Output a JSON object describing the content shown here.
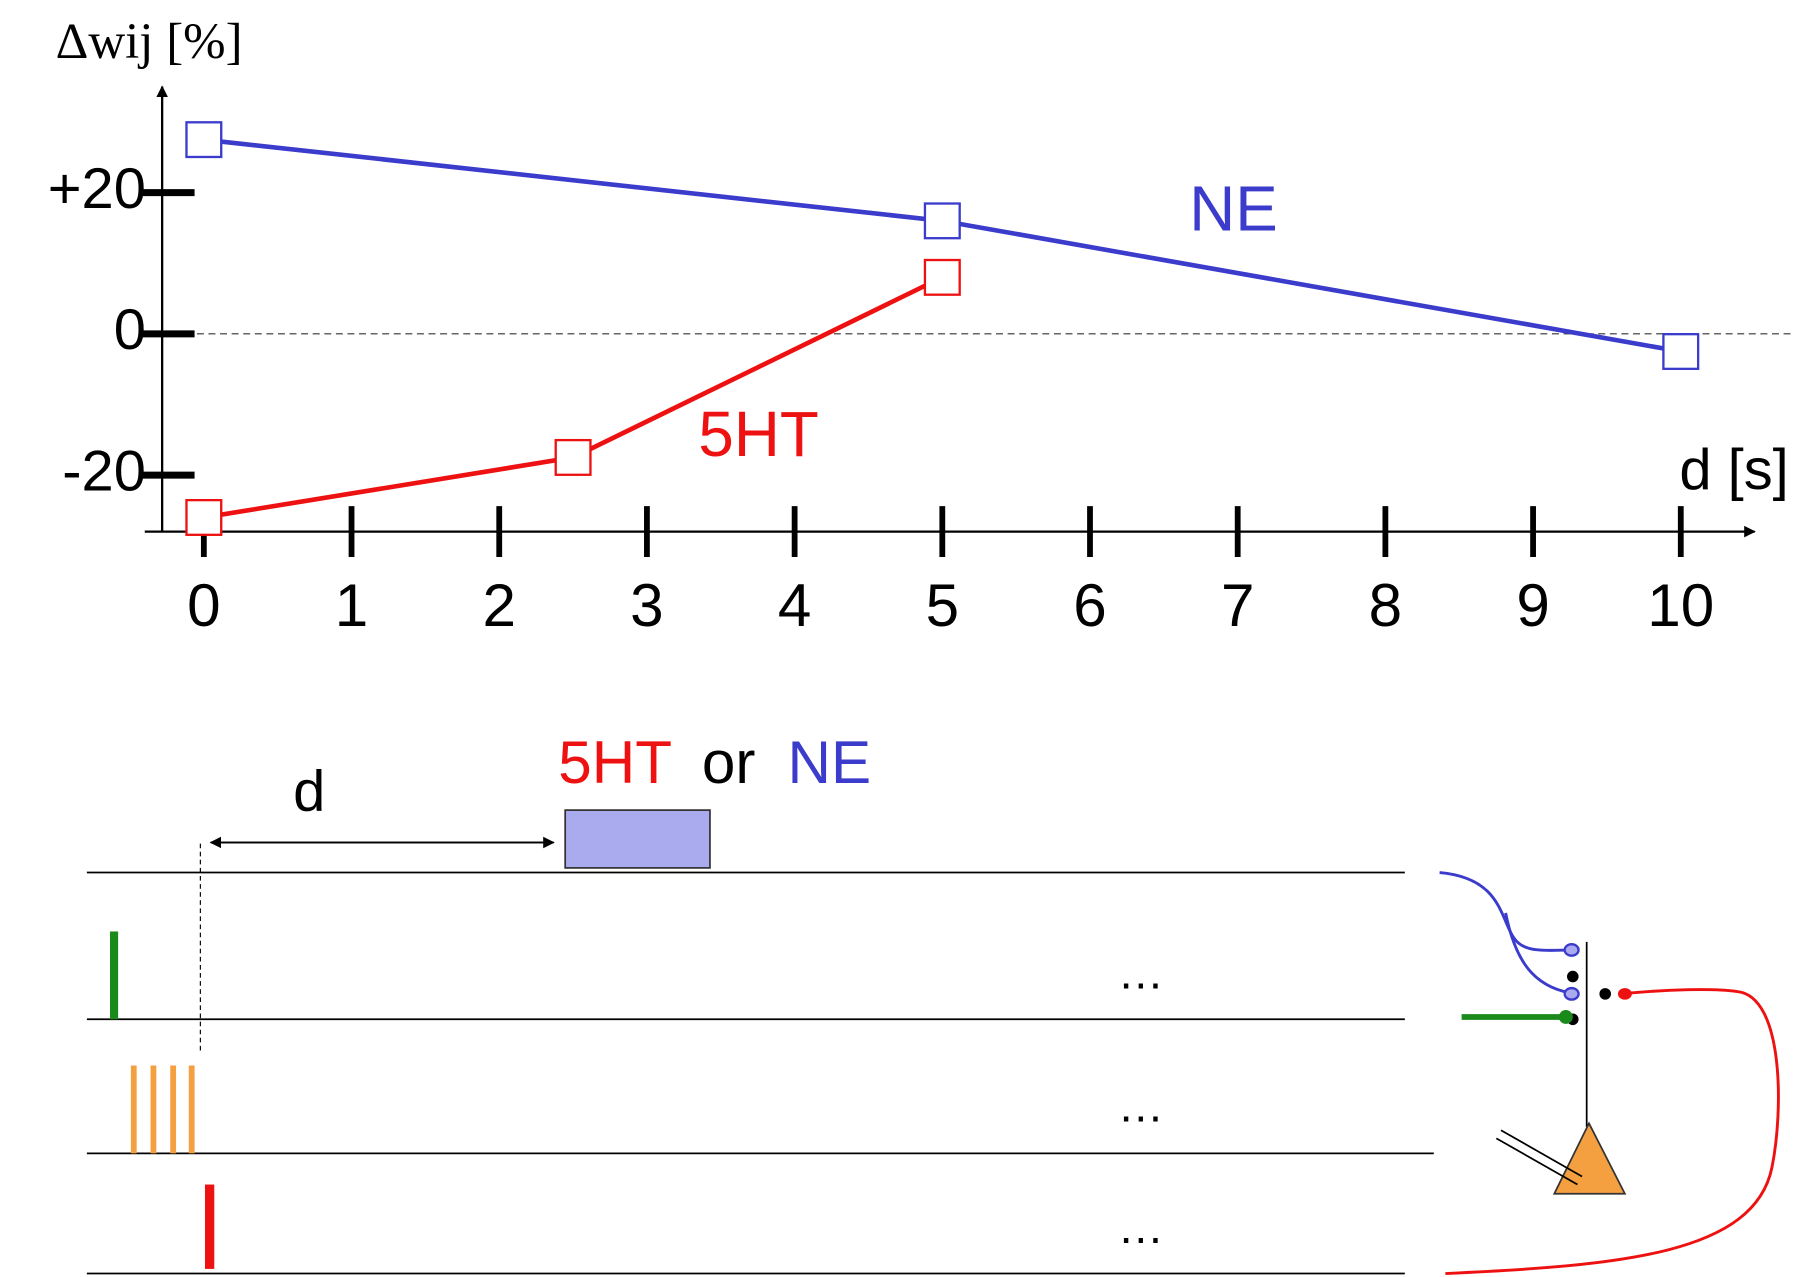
{
  "chart_data": {
    "type": "line",
    "y_label": "Δwij [%]",
    "x_label": "d [s]",
    "xlim": [
      -0.4,
      10.5
    ],
    "ylim": [
      -28,
      35
    ],
    "xticks": [
      0,
      1,
      2,
      3,
      4,
      5,
      6,
      7,
      8,
      9,
      10
    ],
    "yticks": [
      -20,
      0,
      {
        "value": 20,
        "label": "+20"
      }
    ],
    "series": [
      {
        "name": "NE",
        "color": "#3b3bcc",
        "x": [
          0,
          5,
          10
        ],
        "values": [
          27.5,
          16,
          -2.5
        ]
      },
      {
        "name": "5HT",
        "color": "#ee1111",
        "x": [
          0,
          2.5,
          5
        ],
        "values": [
          -26,
          -17.5,
          8
        ]
      }
    ]
  },
  "diagram": {
    "d_label": "d",
    "stimulus_label": [
      "5HT",
      "or",
      "NE"
    ],
    "ellipses": [
      "…",
      "…",
      "…"
    ]
  }
}
